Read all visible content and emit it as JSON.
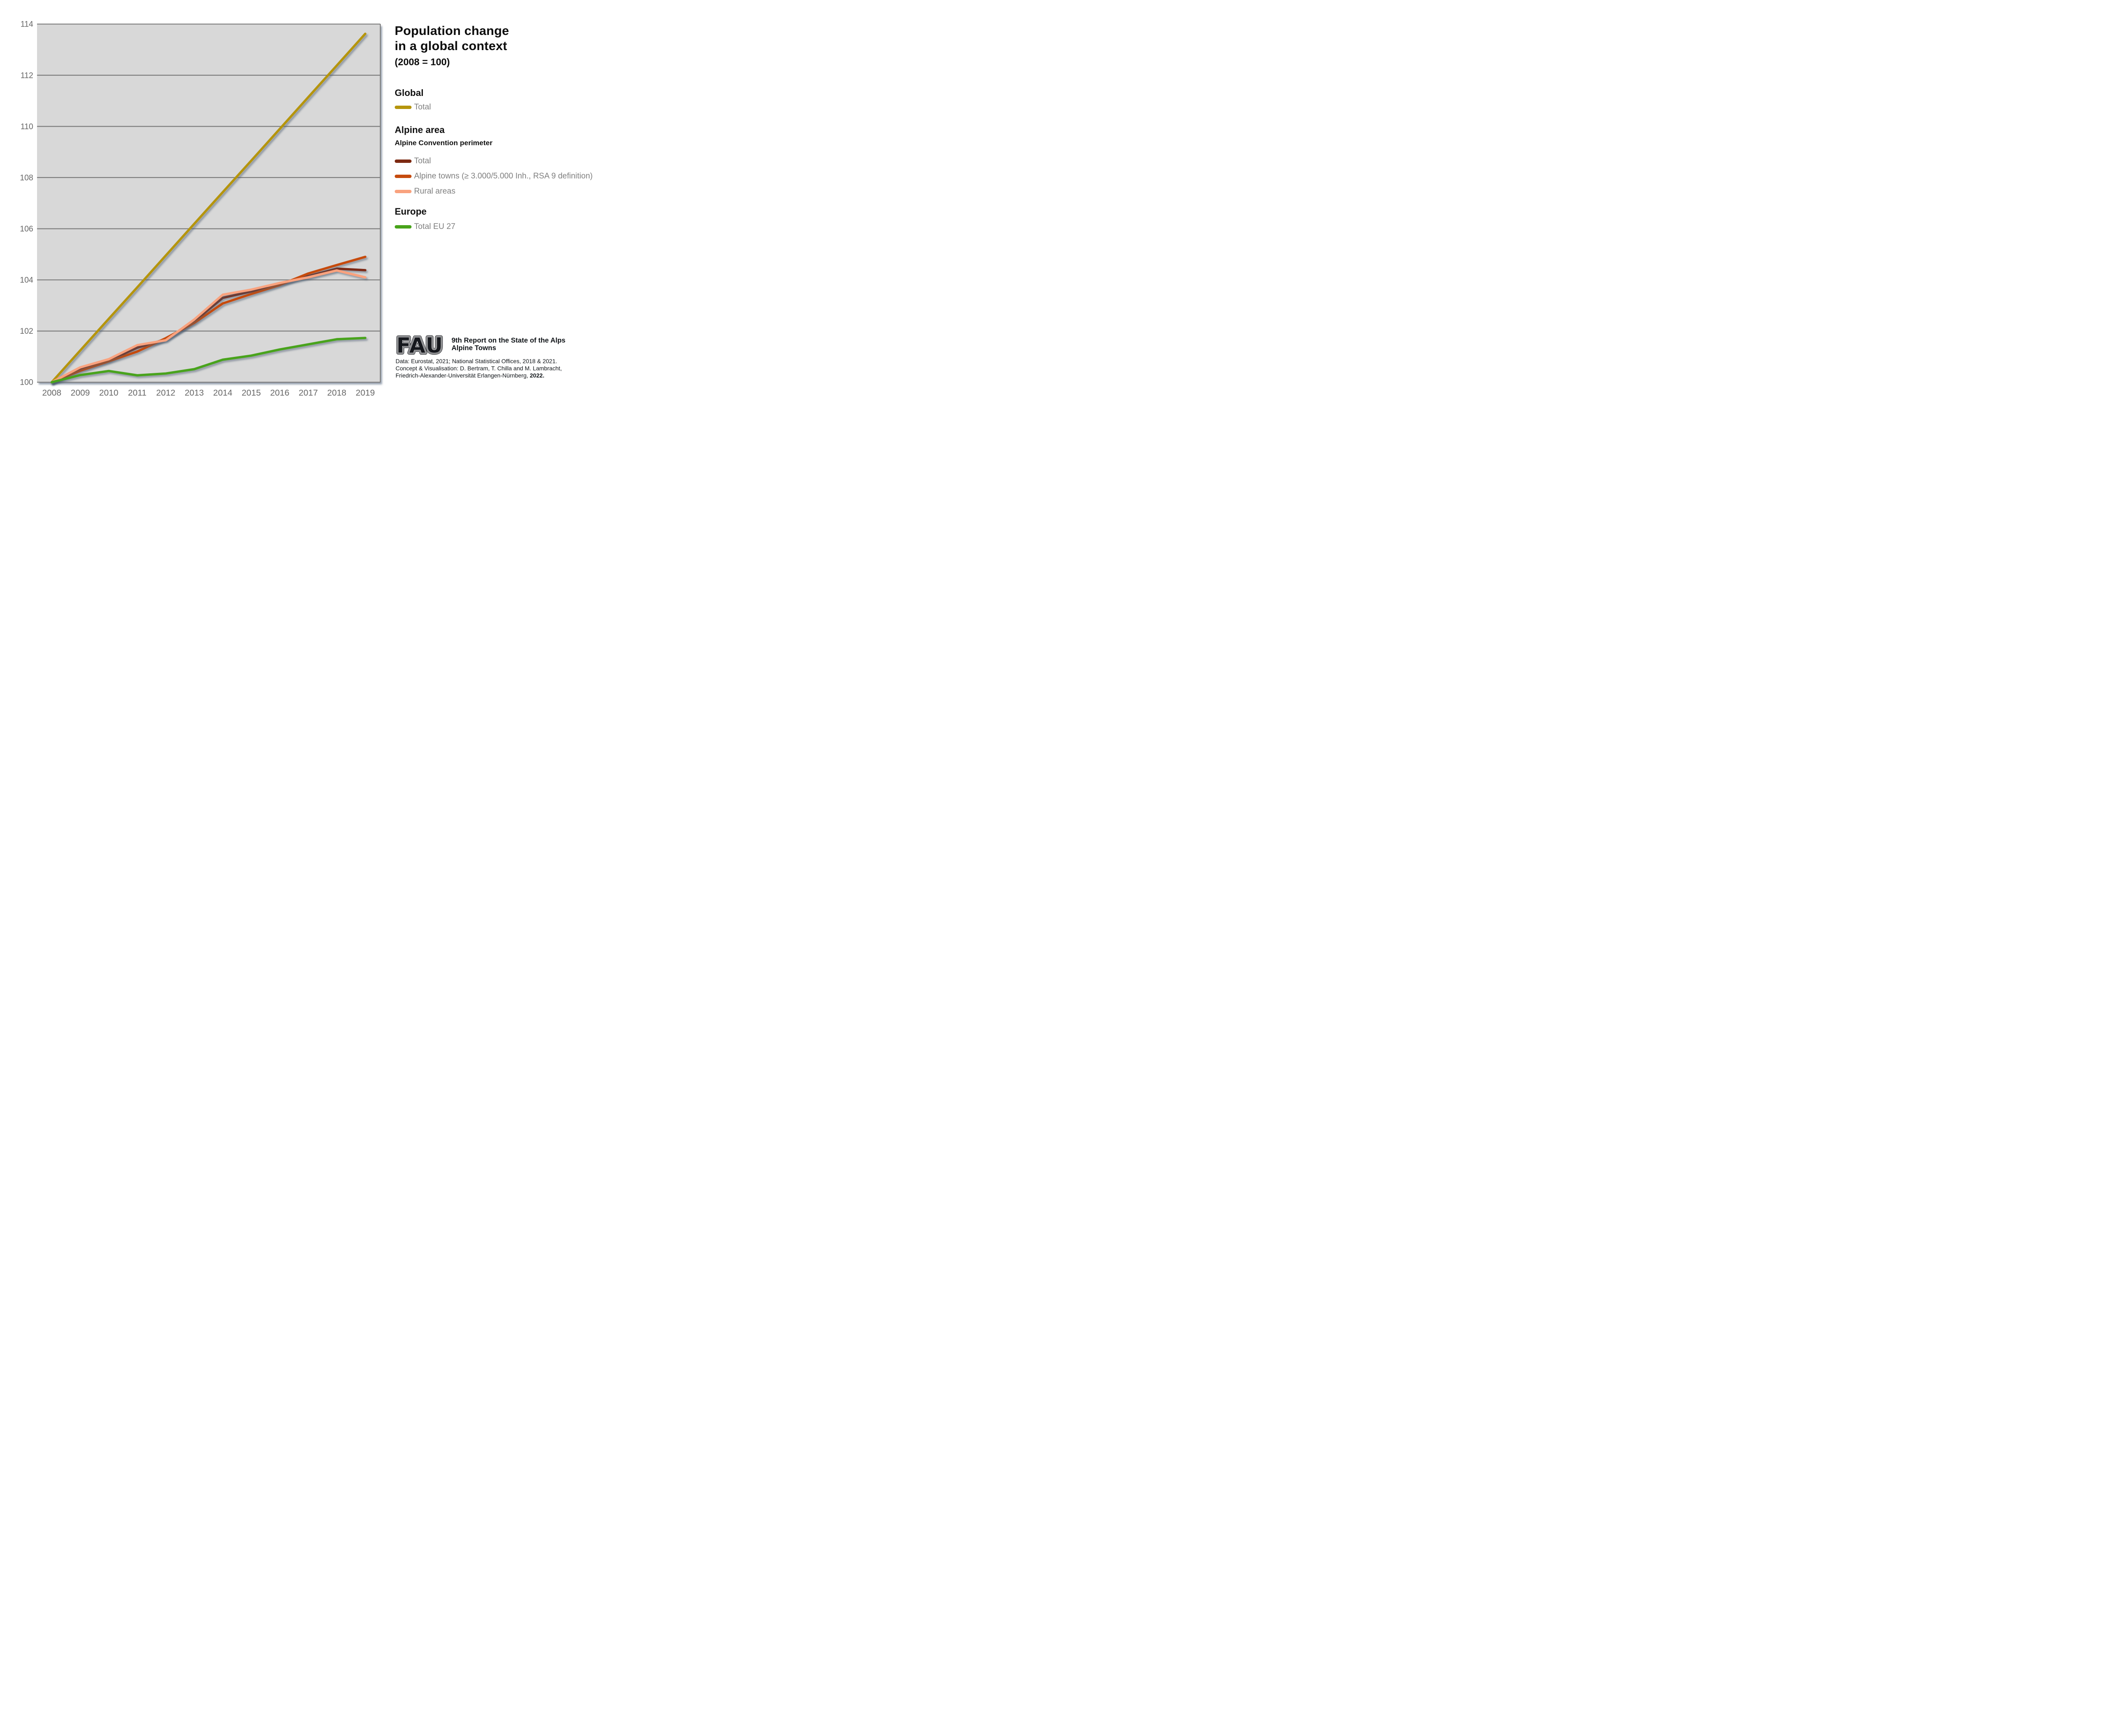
{
  "title": {
    "line1": "Population change",
    "line2": "in a global context",
    "subtitle": "(2008 = 100)"
  },
  "legend": {
    "global": {
      "heading": "Global",
      "items": [
        {
          "label": "Total",
          "color": "#b5950d"
        }
      ]
    },
    "alpine": {
      "heading": "Alpine area",
      "subheading": "Alpine Convention perimeter",
      "items": [
        {
          "label": "Total",
          "color": "#7d2a12"
        },
        {
          "label": "Alpine towns (≥ 3.000/5.000 Inh., RSA 9 definition)",
          "color": "#c64b0e"
        },
        {
          "label": "Rural areas",
          "color": "#f9a27e"
        }
      ]
    },
    "europe": {
      "heading": "Europe",
      "items": [
        {
          "label": "Total EU 27",
          "color": "#48a31a"
        }
      ]
    }
  },
  "footer": {
    "logo_text": "FAU",
    "report_line1": "9th Report on the State of the Alps",
    "report_line2": "Alpine Towns",
    "source_line1": "Data: Eurostat, 2021; National Statistical Offices, 2018 & 2021.",
    "source_line2": "Concept & Visualisation: D. Bertram, T. Chilla and M. Lambracht,",
    "source_line3": "Friedrich-Alexander-Universität Erlangen-Nürnberg, ",
    "source_year": "2022."
  },
  "chart_data": {
    "type": "line",
    "title": "Population change in a global context",
    "subtitle": "(2008 = 100)",
    "xlabel": "",
    "ylabel": "",
    "x": [
      2008,
      2009,
      2010,
      2011,
      2012,
      2013,
      2014,
      2015,
      2016,
      2017,
      2018,
      2019
    ],
    "xticks": [
      "2008",
      "2009",
      "2010",
      "2011",
      "2012",
      "2013",
      "2014",
      "2015",
      "2016",
      "2017",
      "2018",
      "2019"
    ],
    "yticks": [
      100,
      102,
      104,
      106,
      108,
      110,
      112,
      114
    ],
    "ylim": [
      100,
      114
    ],
    "grid": "horizontal-only",
    "plot_background": "#d8d8d8",
    "gridline_color": "#7d7d7d",
    "tick_label_color": "#676767",
    "series": [
      {
        "name": "Global – Total",
        "color": "#b5950d",
        "values": [
          100,
          101.24,
          102.48,
          103.71,
          104.95,
          106.19,
          107.43,
          108.66,
          109.9,
          111.14,
          112.38,
          113.62
        ]
      },
      {
        "name": "Alpine area – Total",
        "color": "#7d2a12",
        "values": [
          100,
          100.52,
          100.85,
          101.35,
          101.68,
          102.38,
          103.3,
          103.55,
          103.85,
          104.15,
          104.44,
          104.38
        ]
      },
      {
        "name": "Alpine area – Alpine towns (≥ 3.000/5.000 Inh., RSA 9 definition)",
        "color": "#c64b0e",
        "values": [
          100,
          100.45,
          100.82,
          101.2,
          101.72,
          102.32,
          103.08,
          103.45,
          103.8,
          104.25,
          104.58,
          104.9
        ]
      },
      {
        "name": "Alpine area – Rural areas",
        "color": "#f9a27e",
        "values": [
          100,
          100.58,
          100.9,
          101.45,
          101.64,
          102.45,
          103.42,
          103.62,
          103.88,
          104.1,
          104.37,
          104.1
        ]
      },
      {
        "name": "Europe – Total EU 27",
        "color": "#48a31a",
        "values": [
          100,
          100.28,
          100.44,
          100.27,
          100.34,
          100.51,
          100.88,
          101.04,
          101.28,
          101.48,
          101.68,
          101.73
        ]
      }
    ]
  }
}
